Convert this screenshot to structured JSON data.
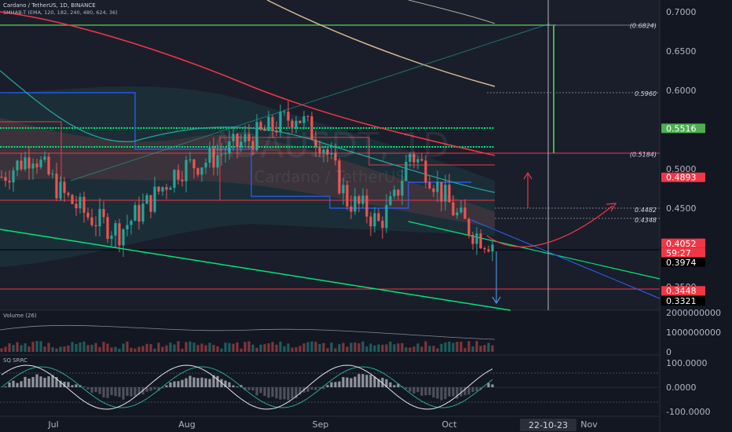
{
  "header": {
    "title": "Cardano / TetherUS, 1D, BINANCE",
    "indicator": "SMHAB-T (EMA, 120, 182, 240, 480, 624, 36)"
  },
  "watermark": {
    "symbol": "ADAUSDT, 1D",
    "name": "Cardano / TetherUS"
  },
  "colors": {
    "background": "#131722",
    "up": "#26a69a",
    "down": "#ef5350",
    "accent_green": "#4caf50",
    "accent_red": "#f23645",
    "pivot_line": "#00e676"
  },
  "chart_data": [
    {
      "type": "line",
      "title": "",
      "ylim": [
        0.31,
        0.72
      ],
      "price_axis": {
        "ticks": [
          "0.7000",
          "0.6500",
          "0.6000",
          "0.5500",
          "0.5000",
          "0.4500",
          "0.3500"
        ],
        "tick_values": [
          0.7,
          0.65,
          0.6,
          0.55,
          0.5,
          0.45,
          0.35
        ]
      },
      "price_badges": [
        {
          "label": "0.5516",
          "value": 0.5516,
          "color": "#4caf50"
        },
        {
          "label": "0.4893",
          "value": 0.4893,
          "color": "#f23645"
        },
        {
          "label": "0.4052",
          "value": 0.4052,
          "color": "#f23645"
        },
        {
          "label": "59:27",
          "value": 0.399,
          "color": "#f23645"
        },
        {
          "label": "0.3974",
          "value": 0.3974,
          "color": "#000000"
        },
        {
          "label": "0.3448",
          "value": 0.3448,
          "color": "#f23645"
        },
        {
          "label": "0.3321",
          "value": 0.3321,
          "color": "#000000"
        }
      ],
      "level_labels": [
        {
          "label": "0.5960",
          "value": 0.596
        },
        {
          "label": "0.4482",
          "value": 0.4482
        },
        {
          "label": "0.4348",
          "value": 0.4348
        },
        {
          "label": "(0.5184)",
          "value": 0.5184
        },
        {
          "label": "(0.6824)",
          "value": 0.6824
        }
      ],
      "series": [
        {
          "x": [
            0,
            8,
            15,
            22,
            30,
            38,
            45,
            52,
            60,
            68,
            75,
            82,
            88,
            92,
            96,
            100,
            104,
            108,
            112,
            116,
            120
          ],
          "values": [
            0.49,
            0.52,
            0.47,
            0.44,
            0.42,
            0.46,
            0.5,
            0.51,
            0.53,
            0.55,
            0.57,
            0.53,
            0.46,
            0.45,
            0.43,
            0.46,
            0.52,
            0.5,
            0.47,
            0.44,
            0.42
          ]
        },
        {
          "x": [
            120,
            123,
            126
          ],
          "values": [
            0.42,
            0.41,
            0.4052
          ]
        }
      ]
    },
    {
      "type": "bar",
      "title": "Volume (26)",
      "ylim": [
        0,
        2000000000
      ],
      "ticks": [
        "2000000000",
        "1000000000",
        "0"
      ]
    },
    {
      "type": "line",
      "title": "SQ SRRC",
      "ylim": [
        -100,
        100
      ],
      "ticks": [
        "100.0000",
        "0.0000",
        "-100.0000"
      ]
    }
  ],
  "time_axis": {
    "labels": [
      "Jul",
      "Aug",
      "Sep",
      "Oct",
      "Nov"
    ],
    "cursor_label": "22-10-23"
  }
}
